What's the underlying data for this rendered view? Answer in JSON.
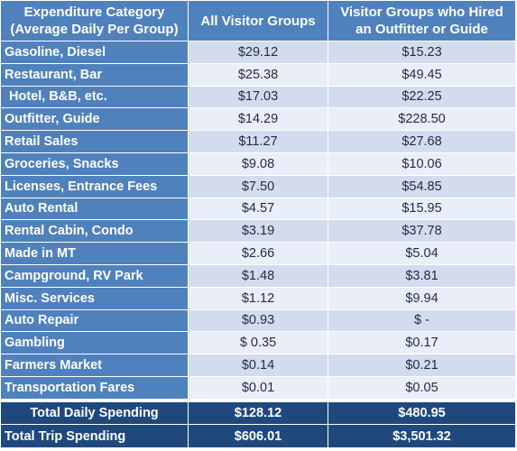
{
  "table": {
    "headers": [
      [
        "Expenditure Category",
        "(Average Daily Per Group)"
      ],
      [
        "All Visitor Groups"
      ],
      [
        "Visitor Groups who Hired",
        "an Outfitter or Guide"
      ]
    ],
    "rows": [
      {
        "category": "Gasoline, Diesel",
        "all": "$29.12",
        "outfitter": "$15.23"
      },
      {
        "category": "Restaurant, Bar",
        "all": "$25.38",
        "outfitter": "$49.45"
      },
      {
        "category": "Hotel, B&B, etc.",
        "all": "$17.03",
        "outfitter": "$22.25"
      },
      {
        "category": "Outfitter, Guide",
        "all": "$14.29",
        "outfitter": "$228.50"
      },
      {
        "category": "Retail Sales",
        "all": "$11.27",
        "outfitter": "$27.68"
      },
      {
        "category": "Groceries, Snacks",
        "all": "$9.08",
        "outfitter": "$10.06"
      },
      {
        "category": "Licenses, Entrance Fees",
        "all": "$7.50",
        "outfitter": "$54.85"
      },
      {
        "category": "Auto Rental",
        "all": "$4.57",
        "outfitter": "$15.95"
      },
      {
        "category": "Rental Cabin, Condo",
        "all": "$3.19",
        "outfitter": "$37.78"
      },
      {
        "category": "Made in MT",
        "all": "$2.66",
        "outfitter": "$5.04"
      },
      {
        "category": "Campground, RV Park",
        "all": "$1.48",
        "outfitter": "$3.81"
      },
      {
        "category": "Misc. Services",
        "all": "$1.12",
        "outfitter": "$9.94"
      },
      {
        "category": "Auto Repair",
        "all": "$0.93",
        "outfitter": "$ -"
      },
      {
        "category": "Gambling",
        "all": "$ 0.35",
        "outfitter": "$0.17"
      },
      {
        "category": "Farmers Market",
        "all": "$0.14",
        "outfitter": "$0.21"
      },
      {
        "category": "Transportation Fares",
        "all": "$0.01",
        "outfitter": "$0.05"
      }
    ],
    "totals": [
      {
        "label": "Total Daily Spending",
        "all": "$128.12",
        "outfitter": "$480.95"
      },
      {
        "label": "Total Trip Spending",
        "all": "$606.01",
        "outfitter": "$3,501.32"
      }
    ]
  },
  "colors": {
    "header_blue": "#4f81bd",
    "total_navy": "#1f497d",
    "band_dark": "#d3dcee",
    "band_light": "#e9eef8"
  }
}
